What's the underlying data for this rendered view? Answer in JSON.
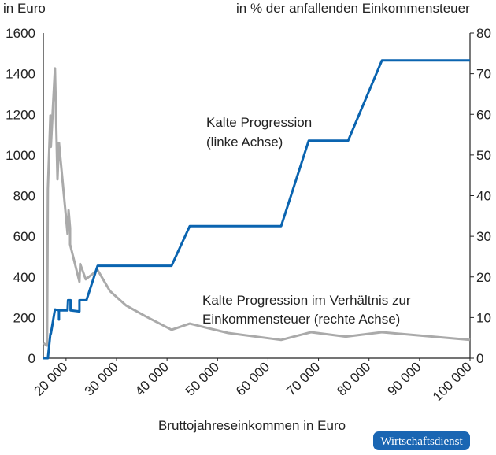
{
  "chart_data": {
    "type": "line",
    "left_axis_title": "in Euro",
    "right_axis_title": "in % der anfallenden Einkommensteuer",
    "xlabel": "Bruttojahreseinkommen in Euro",
    "xlim": [
      15500,
      100000
    ],
    "ylim_left": [
      0,
      1600
    ],
    "ylim_right": [
      0,
      80
    ],
    "x_ticks": [
      20000,
      30000,
      40000,
      50000,
      60000,
      70000,
      80000,
      90000,
      100000
    ],
    "x_tick_labels": [
      "20 000",
      "30 000",
      "40 000",
      "50 000",
      "60 000",
      "70 000",
      "80 000",
      "90 000",
      "100 000"
    ],
    "y_left_ticks": [
      "0",
      "200",
      "400",
      "600",
      "800",
      "1000",
      "1200",
      "1400",
      "1600"
    ],
    "y_right_ticks": [
      "0",
      "10",
      "20",
      "30",
      "40",
      "50",
      "60",
      "70",
      "80"
    ],
    "grid": false,
    "series": [
      {
        "name": "Kalte Progression (linke Achse)",
        "axis": "left",
        "color": "#0a64b0",
        "x": [
          15500,
          16400,
          16900,
          17000,
          17800,
          18600,
          18600,
          18600,
          20300,
          20400,
          20900,
          20900,
          22650,
          22650,
          24050,
          26250,
          40900,
          44500,
          62600,
          68050,
          75850,
          82550,
          100000
        ],
        "y": [
          0,
          0,
          120,
          120,
          240,
          235,
          190,
          235,
          235,
          285,
          285,
          235,
          230,
          285,
          285,
          455,
          455,
          650,
          650,
          1070,
          1070,
          1465,
          1465
        ]
      },
      {
        "name": "Kalte Progression im Verhältnis zur Einkommensteuer (rechte Achse)",
        "axis": "right",
        "color": "#aaaaaa",
        "x": [
          15500,
          16250,
          16400,
          16900,
          17000,
          17800,
          18300,
          18600,
          20300,
          20500,
          20800,
          20800,
          22650,
          22800,
          23900,
          26250,
          28700,
          31850,
          35750,
          40900,
          44500,
          52100,
          62600,
          68500,
          75400,
          82550,
          100000
        ],
        "y": [
          3.7,
          3.1,
          41.6,
          59.7,
          52,
          71.3,
          44,
          53,
          30.6,
          36.4,
          32,
          28,
          18.8,
          23.2,
          19.4,
          21.7,
          16.5,
          13,
          10.3,
          7.0,
          8.5,
          6.2,
          4.5,
          6.4,
          5.3,
          6.4,
          4.5
        ]
      }
    ],
    "annotations": [
      [
        "Kalte Progression",
        "(linke Achse)"
      ],
      [
        "Kalte Progression im Verhältnis zur",
        "Einkommensteuer (rechte Achse)"
      ]
    ]
  },
  "logo": "Wirtschaftsdienst",
  "colors": {
    "logo_bg": "#1a66b3"
  }
}
